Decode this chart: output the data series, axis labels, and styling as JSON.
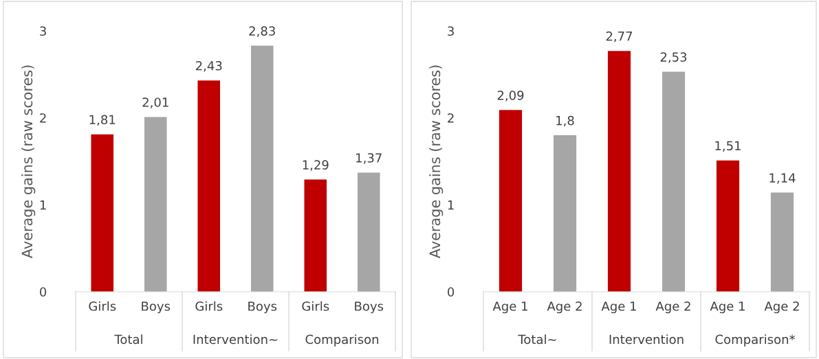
{
  "chart_data": [
    {
      "type": "bar",
      "ylabel": "Average gains (raw scores)",
      "categories": [
        "Girls",
        "Boys",
        "Girls",
        "Boys",
        "Girls",
        "Boys"
      ],
      "values": [
        1.81,
        2.01,
        2.43,
        2.83,
        1.29,
        1.37
      ],
      "colors": [
        "#c00000",
        "#a6a6a6",
        "#c00000",
        "#a6a6a6",
        "#c00000",
        "#a6a6a6"
      ],
      "value_labels": [
        "1,81",
        "2,01",
        "2,43",
        "2,83",
        "1,29",
        "1,37"
      ],
      "ylim": [
        0,
        3
      ],
      "yticks": [
        0,
        1,
        2,
        3
      ],
      "grid": false,
      "legend": false,
      "annotations": [
        "Total",
        "Intervention~",
        "Comparison"
      ]
    },
    {
      "type": "bar",
      "ylabel": "Average gains (raw scores)",
      "categories": [
        "Age 1",
        "Age 2",
        "Age 1",
        "Age 2",
        "Age 1",
        "Age 2"
      ],
      "values": [
        2.09,
        1.8,
        2.77,
        2.53,
        1.51,
        1.14
      ],
      "colors": [
        "#c00000",
        "#a6a6a6",
        "#c00000",
        "#a6a6a6",
        "#c00000",
        "#a6a6a6"
      ],
      "value_labels": [
        "2,09",
        "1,8",
        "2,77",
        "2,53",
        "1,51",
        "1,14"
      ],
      "ylim": [
        0,
        3
      ],
      "yticks": [
        0,
        1,
        2,
        3
      ],
      "grid": false,
      "legend": false,
      "annotations": [
        "Total~",
        "Intervention",
        "Comparison*"
      ]
    }
  ]
}
